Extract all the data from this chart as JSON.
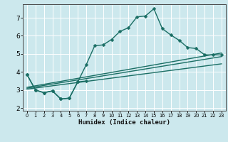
{
  "xlabel": "Humidex (Indice chaleur)",
  "background_color": "#cce8ed",
  "grid_color": "#ffffff",
  "line_color": "#1a6e64",
  "xlim": [
    -0.5,
    23.5
  ],
  "ylim": [
    1.85,
    7.75
  ],
  "yticks": [
    2,
    3,
    4,
    5,
    6,
    7
  ],
  "xtick_labels": [
    "0",
    "1",
    "2",
    "3",
    "4",
    "5",
    "6",
    "7",
    "8",
    "9",
    "10",
    "11",
    "12",
    "13",
    "14",
    "15",
    "16",
    "17",
    "18",
    "19",
    "20",
    "21",
    "22",
    "23"
  ],
  "series": [
    {
      "x": [
        0,
        1,
        2,
        3,
        4,
        5,
        6,
        7
      ],
      "y": [
        3.85,
        3.0,
        2.85,
        2.95,
        2.5,
        2.55,
        3.45,
        3.5
      ],
      "marker": true
    },
    {
      "x": [
        0,
        1,
        2,
        3,
        4,
        5,
        6,
        7,
        8,
        9,
        10,
        11,
        12,
        13,
        14,
        15,
        16,
        17,
        18,
        19,
        20,
        21,
        22,
        23
      ],
      "y": [
        3.85,
        3.0,
        2.85,
        2.95,
        2.5,
        2.55,
        3.45,
        4.4,
        5.45,
        5.5,
        5.8,
        6.25,
        6.45,
        7.05,
        7.1,
        7.5,
        6.4,
        6.05,
        5.75,
        5.35,
        5.3,
        4.95,
        4.95,
        4.95
      ],
      "marker": true
    },
    {
      "x": [
        0,
        23
      ],
      "y": [
        3.05,
        4.45
      ],
      "marker": false
    },
    {
      "x": [
        0,
        23
      ],
      "y": [
        3.1,
        4.85
      ],
      "marker": false
    },
    {
      "x": [
        0,
        23
      ],
      "y": [
        3.15,
        5.05
      ],
      "marker": false
    }
  ]
}
